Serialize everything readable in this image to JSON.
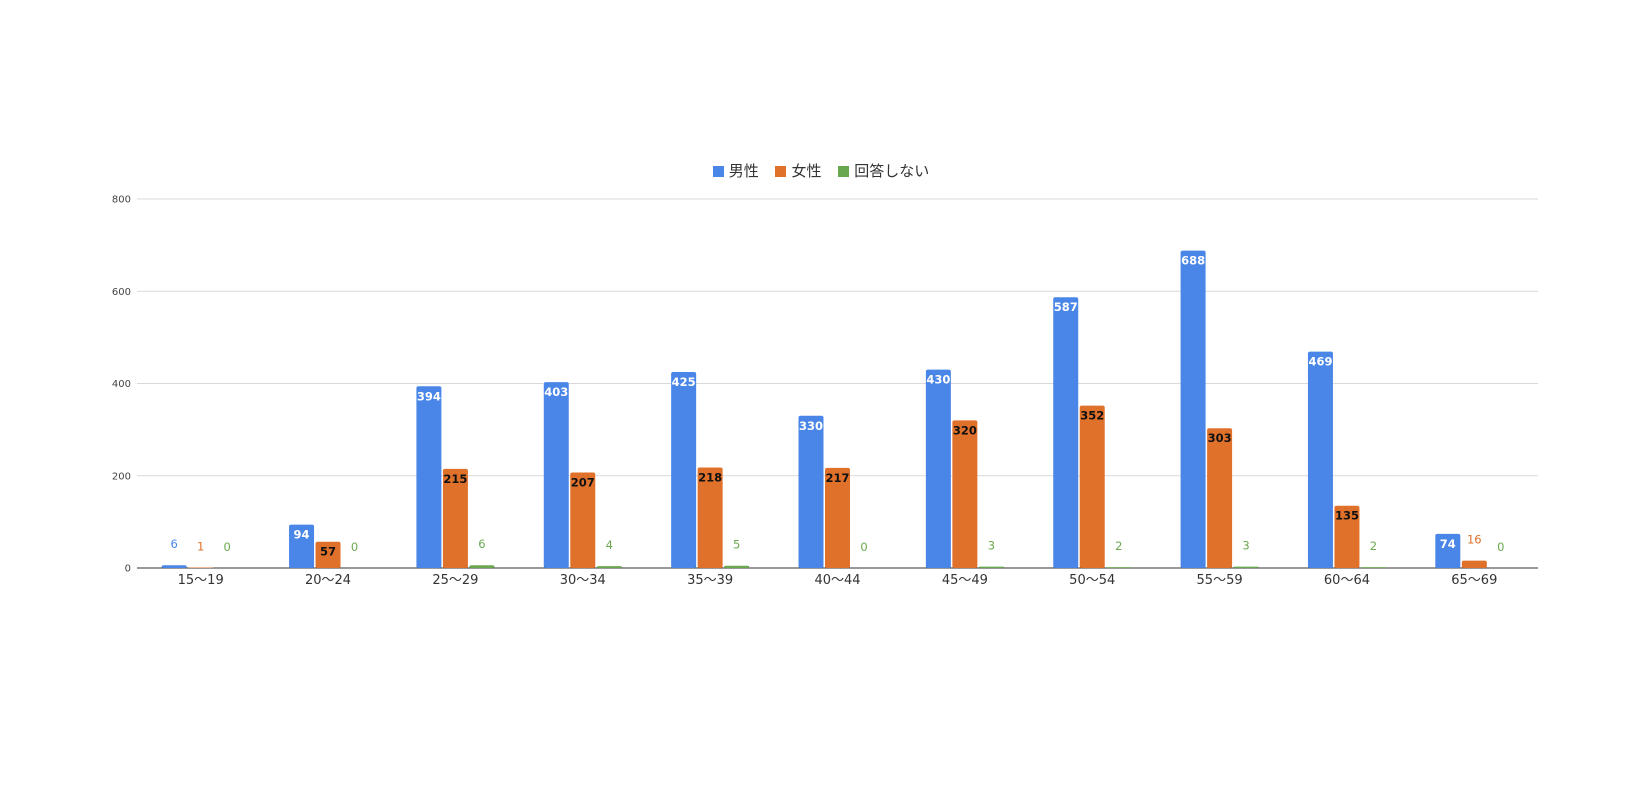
{
  "chart_data": {
    "type": "bar",
    "title": "",
    "xlabel": "",
    "ylabel": "",
    "categories": [
      "15〜19",
      "20〜24",
      "25〜29",
      "30〜34",
      "35〜39",
      "40〜44",
      "45〜49",
      "50〜54",
      "55〜59",
      "60〜64",
      "65〜69"
    ],
    "series": [
      {
        "name": "男性",
        "color": "#4a86e8",
        "values": [
          6,
          94,
          394,
          403,
          425,
          330,
          430,
          587,
          688,
          469,
          74
        ]
      },
      {
        "name": "女性",
        "color": "#e0712b",
        "values": [
          1,
          57,
          215,
          207,
          218,
          217,
          320,
          352,
          303,
          135,
          16
        ]
      },
      {
        "name": "回答しない",
        "color": "#6aa84f",
        "values": [
          0,
          0,
          6,
          4,
          5,
          0,
          3,
          2,
          3,
          2,
          0
        ]
      }
    ],
    "ylim": [
      0,
      800
    ],
    "yticks": [
      0,
      200,
      400,
      600,
      800
    ],
    "grid": true,
    "legend_position": "top-center",
    "data_labels": true
  }
}
